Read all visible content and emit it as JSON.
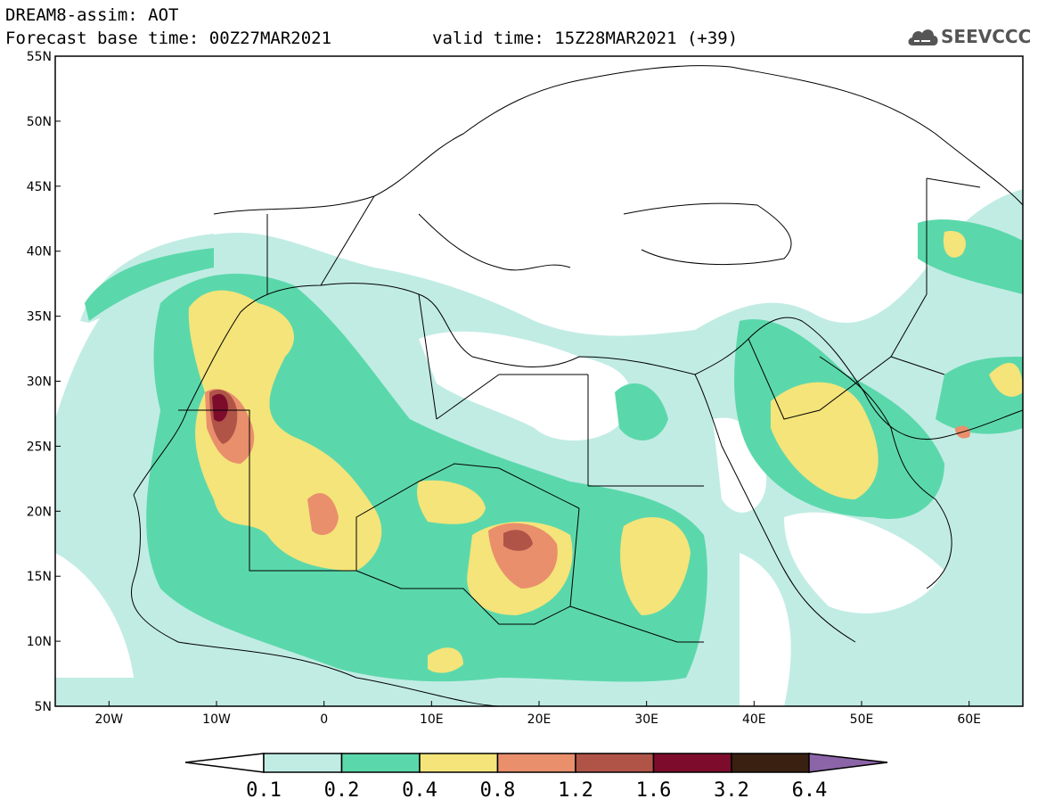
{
  "header": {
    "line1": "DREAM8-assim: AOT",
    "line2": "Forecast base time: 00Z27MAR2021",
    "line3": "valid time: 15Z28MAR2021 (+39)"
  },
  "logo": {
    "text": "SEEVCCC",
    "icon": "cloud-icon"
  },
  "map": {
    "lat_range": [
      5,
      55
    ],
    "lon_range": [
      -25,
      65
    ],
    "lat_ticks": [
      {
        "value": 55,
        "label": "55N"
      },
      {
        "value": 50,
        "label": "50N"
      },
      {
        "value": 45,
        "label": "45N"
      },
      {
        "value": 40,
        "label": "40N"
      },
      {
        "value": 35,
        "label": "35N"
      },
      {
        "value": 30,
        "label": "30N"
      },
      {
        "value": 25,
        "label": "25N"
      },
      {
        "value": 20,
        "label": "20N"
      },
      {
        "value": 15,
        "label": "15N"
      },
      {
        "value": 10,
        "label": "10N"
      },
      {
        "value": 5,
        "label": "5N"
      }
    ],
    "lon_ticks": [
      {
        "value": -20,
        "label": "20W"
      },
      {
        "value": -10,
        "label": "10W"
      },
      {
        "value": 0,
        "label": "0"
      },
      {
        "value": 10,
        "label": "10E"
      },
      {
        "value": 20,
        "label": "20E"
      },
      {
        "value": 30,
        "label": "30E"
      },
      {
        "value": 40,
        "label": "40E"
      },
      {
        "value": 50,
        "label": "50E"
      },
      {
        "value": 60,
        "label": "60E"
      }
    ]
  },
  "colorbar": {
    "labels": [
      "0.1",
      "0.2",
      "0.4",
      "0.8",
      "1.2",
      "1.6",
      "3.2",
      "6.4"
    ],
    "colors": [
      "#c1ece4",
      "#5bd8ab",
      "#f4e47a",
      "#e98f6c",
      "#b05448",
      "#7d0c2c",
      "#3a2010"
    ],
    "under_color": "#ffffff",
    "over_color": "#8c64a8"
  }
}
